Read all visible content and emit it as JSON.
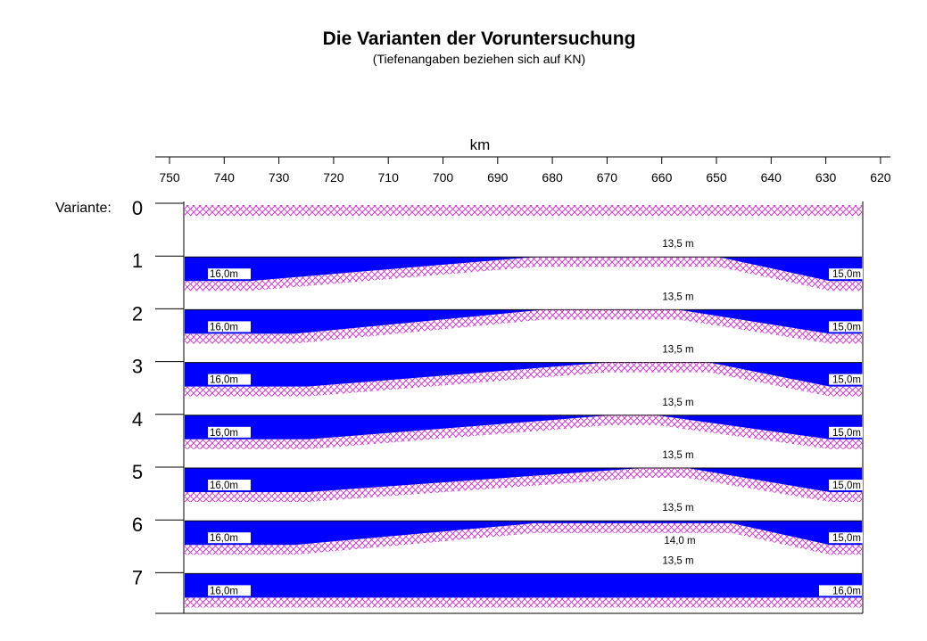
{
  "title": "Die Varianten der Voruntersuchung",
  "subtitle": "(Tiefenangaben beziehen sich auf KN)",
  "axis": {
    "unit": "km",
    "ticks": [
      "750",
      "740",
      "730",
      "720",
      "710",
      "700",
      "690",
      "680",
      "670",
      "660",
      "650",
      "640",
      "630",
      "620"
    ]
  },
  "variant_label": "Variante:",
  "colors": {
    "water": "#0000ff",
    "hatch": "#cc33cc"
  },
  "variants": [
    {
      "number": "0",
      "depth_left": "",
      "depth_right": "",
      "depth_top": "",
      "depth_mid": ""
    },
    {
      "number": "1",
      "depth_left": "16,0m",
      "depth_right": "15,0m",
      "depth_top": "13,5 m",
      "depth_mid": ""
    },
    {
      "number": "2",
      "depth_left": "16,0m",
      "depth_right": "15,0m",
      "depth_top": "13,5 m",
      "depth_mid": ""
    },
    {
      "number": "3",
      "depth_left": "16,0m",
      "depth_right": "15,0m",
      "depth_top": "13,5 m",
      "depth_mid": ""
    },
    {
      "number": "4",
      "depth_left": "16,0m",
      "depth_right": "15,0m",
      "depth_top": "13,5 m",
      "depth_mid": ""
    },
    {
      "number": "5",
      "depth_left": "16,0m",
      "depth_right": "15,0m",
      "depth_top": "13,5 m",
      "depth_mid": ""
    },
    {
      "number": "6",
      "depth_left": "16,0m",
      "depth_right": "15,0m",
      "depth_top": "13,5 m",
      "depth_mid": "14,0 m"
    },
    {
      "number": "7",
      "depth_left": "16,0m",
      "depth_right": "16,0m",
      "depth_top": "13,5 m",
      "depth_mid": ""
    }
  ]
}
